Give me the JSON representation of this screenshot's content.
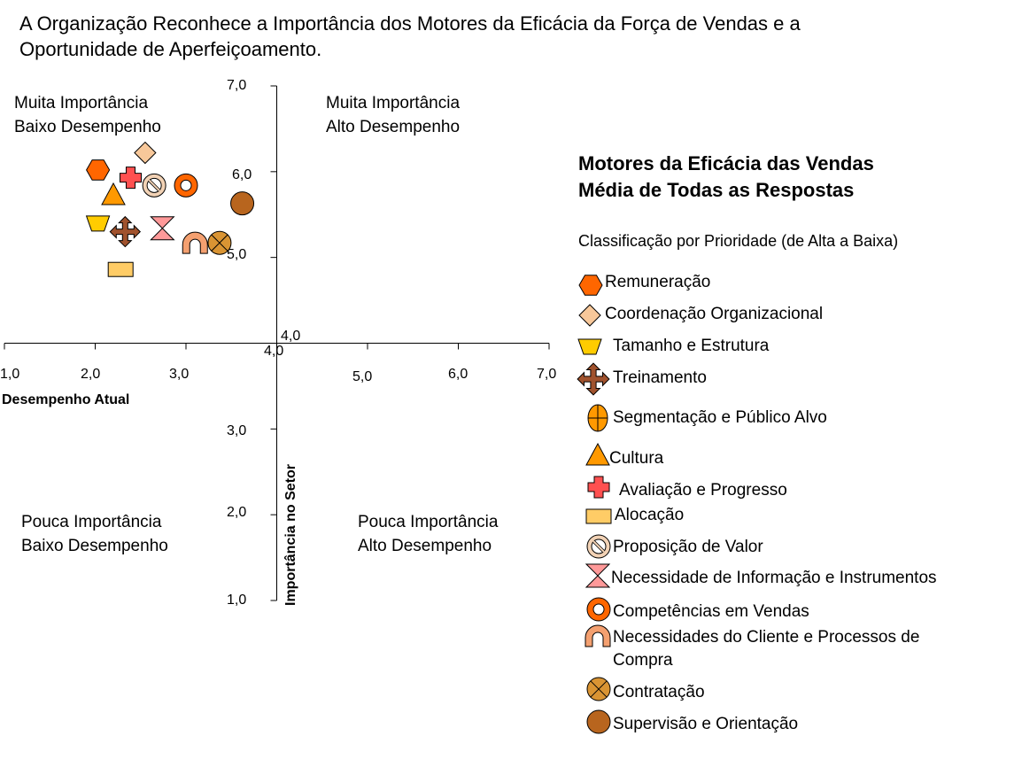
{
  "title": {
    "line1": "A Organização Reconhece a Importância dos Motores da Eficácia da Força de Vendas e a",
    "line2": "Oportunidade de Aperfeiçoamento."
  },
  "quadrants": {
    "tl": {
      "line1": "Muita Importância",
      "line2": "Baixo Desempenho"
    },
    "tr": {
      "line1": "Muita Importância",
      "line2": "Alto Desempenho"
    },
    "bl": {
      "line1": "Pouca Importância",
      "line2": "Baixo Desempenho"
    },
    "br": {
      "line1": "Pouca Importância",
      "line2": "Alto Desempenho"
    }
  },
  "legend": {
    "title_line1": "Motores da Eficácia das Vendas",
    "title_line2": "Média de Todas as Respostas",
    "subtitle": "Classificação por Prioridade (de Alta a Baixa)"
  },
  "colors": {
    "remuneracao": "#FF6600",
    "coordenacao": "#F8C89A",
    "tamanho": "#FFCC00",
    "treinamento": "#A0522D",
    "segmentacao": "#FF9900",
    "cultura": "#FF9900",
    "avaliacao": "#FF5050",
    "alocacao": "#FFCC66",
    "proposicao": "#F2D2B5",
    "necessidade": "#FF9999",
    "competencias": "#FF6600",
    "necessidades_cliente": "#F4A070",
    "contratacao": "#D99433",
    "supervisao": "#B8651E"
  },
  "chart_data": {
    "type": "scatter",
    "title": "A Organização Reconhece a Importância dos Motores da Eficácia da Força de Vendas e a Oportunidade de Aperfeiçoamento.",
    "xlabel": "Desempenho Atual",
    "ylabel": "Importância no Setor",
    "xlim": [
      1.0,
      7.0
    ],
    "ylim": [
      1.0,
      7.0
    ],
    "axis_cross": [
      4.0,
      4.0
    ],
    "x_ticks": [
      "1,0",
      "2,0",
      "3,0",
      "4,0",
      "5,0",
      "6,0",
      "7,0"
    ],
    "y_ticks": [
      "1,0",
      "2,0",
      "3,0",
      "4,0",
      "5,0",
      "6,0",
      "7,0"
    ],
    "grid": false,
    "legend_position": "right",
    "points": [
      {
        "name": "Remuneração",
        "marker": "hexagon-icon",
        "color_key": "remuneracao",
        "x": 2.03,
        "y": 6.02
      },
      {
        "name": "Coordenação Organizacional",
        "marker": "diamond-icon",
        "color_key": "coordenacao",
        "x": 2.55,
        "y": 6.22
      },
      {
        "name": "Tamanho e Estrutura",
        "marker": "trapezoid-icon",
        "color_key": "tamanho",
        "x": 2.03,
        "y": 5.4
      },
      {
        "name": "Treinamento",
        "marker": "four-arrows-icon",
        "color_key": "treinamento",
        "x": 2.33,
        "y": 5.3
      },
      {
        "name": "Segmentação e Público Alvo",
        "marker": "circle-cross-icon",
        "color_key": "segmentacao",
        "x": null,
        "y": null
      },
      {
        "name": "Cultura",
        "marker": "triangle-icon",
        "color_key": "cultura",
        "x": 2.2,
        "y": 5.72
      },
      {
        "name": "Avaliação e Progresso",
        "marker": "plus-icon",
        "color_key": "avaliacao",
        "x": 2.39,
        "y": 5.93
      },
      {
        "name": "Alocação",
        "marker": "rectangle-icon",
        "color_key": "alocacao",
        "x": 2.28,
        "y": 4.86
      },
      {
        "name": "Proposição de Valor",
        "marker": "no-symbol-icon",
        "color_key": "proposicao",
        "x": 2.65,
        "y": 5.84
      },
      {
        "name": "Necessidade de Informação e Instrumentos",
        "marker": "hourglass-icon",
        "color_key": "necessidade",
        "x": 2.74,
        "y": 5.34
      },
      {
        "name": "Competências em Vendas",
        "marker": "ring-icon",
        "color_key": "competencias",
        "x": 3.0,
        "y": 5.84
      },
      {
        "name": "Necessidades do Cliente e Processos de Compra",
        "marker": "arch-icon",
        "color_key": "necessidades_cliente",
        "x": 3.1,
        "y": 5.15
      },
      {
        "name": "Contratação",
        "marker": "circle-x-icon",
        "color_key": "contratacao",
        "x": 3.37,
        "y": 5.17
      },
      {
        "name": "Supervisão e Orientação",
        "marker": "filled-circle-icon",
        "color_key": "supervisao",
        "x": 3.62,
        "y": 5.63
      }
    ]
  }
}
